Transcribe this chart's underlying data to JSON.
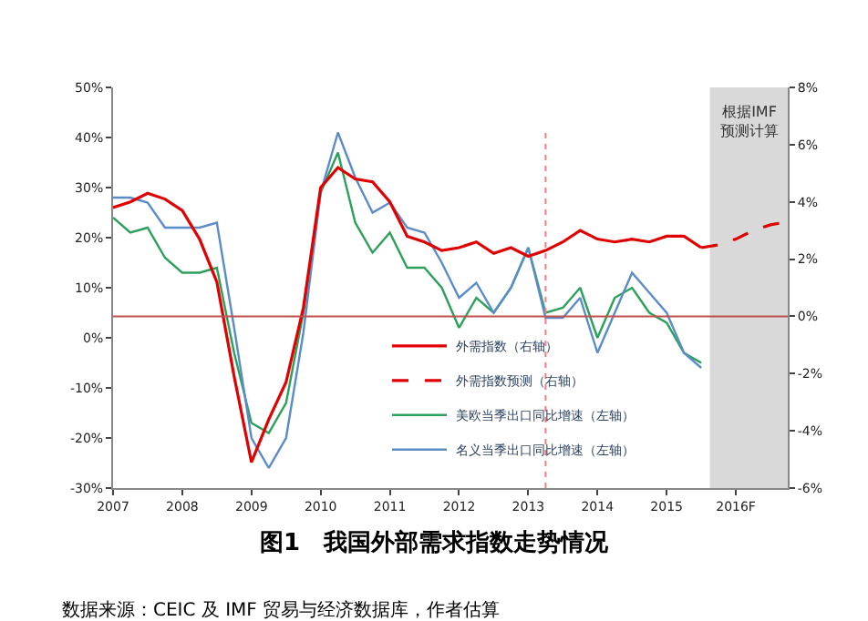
{
  "chart_data": {
    "type": "line",
    "title": "图1　我国外部需求指数走势情况",
    "annotations": [
      "数据来源：CEIC 及 IMF 贸易与经济数据库，作者估算"
    ],
    "xlim": [
      2007,
      2016.75
    ],
    "xticks": [
      2007,
      2008,
      2009,
      2010,
      2011,
      2012,
      2013,
      2014,
      2015,
      {
        "value": 2016,
        "label": "2016F"
      }
    ],
    "ylim": [
      -30,
      50
    ],
    "yticks": [
      {
        "value": -30,
        "label": "-30%"
      },
      {
        "value": -20,
        "label": "-20%"
      },
      {
        "value": -10,
        "label": "-10%"
      },
      {
        "value": 0,
        "label": "0%"
      },
      {
        "value": 10,
        "label": "10%"
      },
      {
        "value": 20,
        "label": "20%"
      },
      {
        "value": 30,
        "label": "30%"
      },
      {
        "value": 40,
        "label": "40%"
      },
      {
        "value": 50,
        "label": "50%"
      }
    ],
    "y2lim": [
      -6,
      8
    ],
    "y2ticks": [
      {
        "value": -6,
        "label": "-6%"
      },
      {
        "value": -4,
        "label": "-4%"
      },
      {
        "value": -2,
        "label": "-2%"
      },
      {
        "value": 0,
        "label": "0%"
      },
      {
        "value": 2,
        "label": "2%"
      },
      {
        "value": 4,
        "label": "4%"
      },
      {
        "value": 6,
        "label": "6%"
      },
      {
        "value": 8,
        "label": "8%"
      }
    ],
    "grid": false,
    "legend": "bottom",
    "marker": "none",
    "series": [
      {
        "name": "外需指数（右轴）",
        "color": "#e00000",
        "axis": "y2",
        "line_style": "solid",
        "x": [
          2007,
          2007.25,
          2007.5,
          2007.75,
          2008,
          2008.25,
          2008.5,
          2008.75,
          2009,
          2009.25,
          2009.5,
          2009.75,
          2010,
          2010.25,
          2010.5,
          2010.75,
          2011,
          2011.25,
          2011.5,
          2011.75,
          2012,
          2012.25,
          2012.5,
          2012.75,
          2013,
          2013.25,
          2013.5,
          2013.75,
          2014,
          2014.25,
          2014.5,
          2014.75,
          2015,
          2015.25,
          2015.5
        ],
        "values": [
          3.8,
          4.0,
          4.3,
          4.1,
          3.7,
          2.7,
          1.2,
          -2.1,
          -5.1,
          -3.6,
          -2.3,
          0.3,
          4.5,
          5.2,
          4.8,
          4.7,
          4.0,
          2.8,
          2.6,
          2.3,
          2.4,
          2.6,
          2.2,
          2.4,
          2.1,
          2.3,
          2.6,
          3.0,
          2.7,
          2.6,
          2.7,
          2.6,
          2.8,
          2.8,
          2.4
        ]
      },
      {
        "name": "外需指数预测（右轴）",
        "color": "#e00000",
        "axis": "y2",
        "line_style": "dashed",
        "x": [
          2015.5,
          2015.75,
          2016,
          2016.25,
          2016.5,
          2016.75
        ],
        "values": [
          2.4,
          2.5,
          2.7,
          3.0,
          3.2,
          3.3
        ]
      },
      {
        "name": "美欧当季出口同比增速（左轴）",
        "color": "#2ca05a",
        "axis": "y",
        "line_style": "solid",
        "x": [
          2007,
          2007.25,
          2007.5,
          2007.75,
          2008,
          2008.25,
          2008.5,
          2008.75,
          2009,
          2009.25,
          2009.5,
          2009.75,
          2010,
          2010.25,
          2010.5,
          2010.75,
          2011,
          2011.25,
          2011.5,
          2011.75,
          2012,
          2012.25,
          2012.5,
          2012.75,
          2013,
          2013.25,
          2013.5,
          2013.75,
          2014,
          2014.25,
          2014.5,
          2014.75,
          2015,
          2015.25,
          2015.5
        ],
        "values": [
          24,
          21,
          22,
          16,
          13,
          13,
          14,
          -3,
          -17,
          -19,
          -13,
          5,
          29,
          37,
          23,
          17,
          21,
          14,
          14,
          10,
          2,
          8,
          5,
          10,
          18,
          5,
          6,
          10,
          0,
          8,
          10,
          5,
          3,
          -3,
          -5
        ]
      },
      {
        "name": "名义当季出口同比增速（左轴）",
        "color": "#5b8cc8",
        "axis": "y",
        "line_style": "solid",
        "x": [
          2007,
          2007.25,
          2007.5,
          2007.75,
          2008,
          2008.25,
          2008.5,
          2008.75,
          2009,
          2009.25,
          2009.5,
          2009.75,
          2010,
          2010.25,
          2010.5,
          2010.75,
          2011,
          2011.25,
          2011.5,
          2011.75,
          2012,
          2012.25,
          2012.5,
          2012.75,
          2013,
          2013.25,
          2013.5,
          2013.75,
          2014,
          2014.25,
          2014.5,
          2014.75,
          2015,
          2015.25,
          2015.5
        ],
        "values": [
          28,
          28,
          27,
          22,
          22,
          22,
          23,
          2,
          -20,
          -26,
          -20,
          1,
          29,
          41,
          32,
          25,
          27,
          22,
          21,
          15,
          8,
          11,
          5,
          10,
          18,
          4,
          4,
          8,
          -3,
          5,
          13,
          9,
          5,
          -3,
          -6
        ]
      }
    ],
    "ref_lines": [
      {
        "axis": "y2",
        "value": 0,
        "color": "#c0504d",
        "line_style": "solid"
      },
      {
        "axis": "x",
        "value": 2013.25,
        "color": "#f08080",
        "line_style": "dotted"
      }
    ],
    "bands": [
      {
        "axis": "x",
        "from": 2015.625,
        "to": 2016.75,
        "label": "根据IMF\n预测计算",
        "color": "#d9d9d9"
      }
    ]
  }
}
